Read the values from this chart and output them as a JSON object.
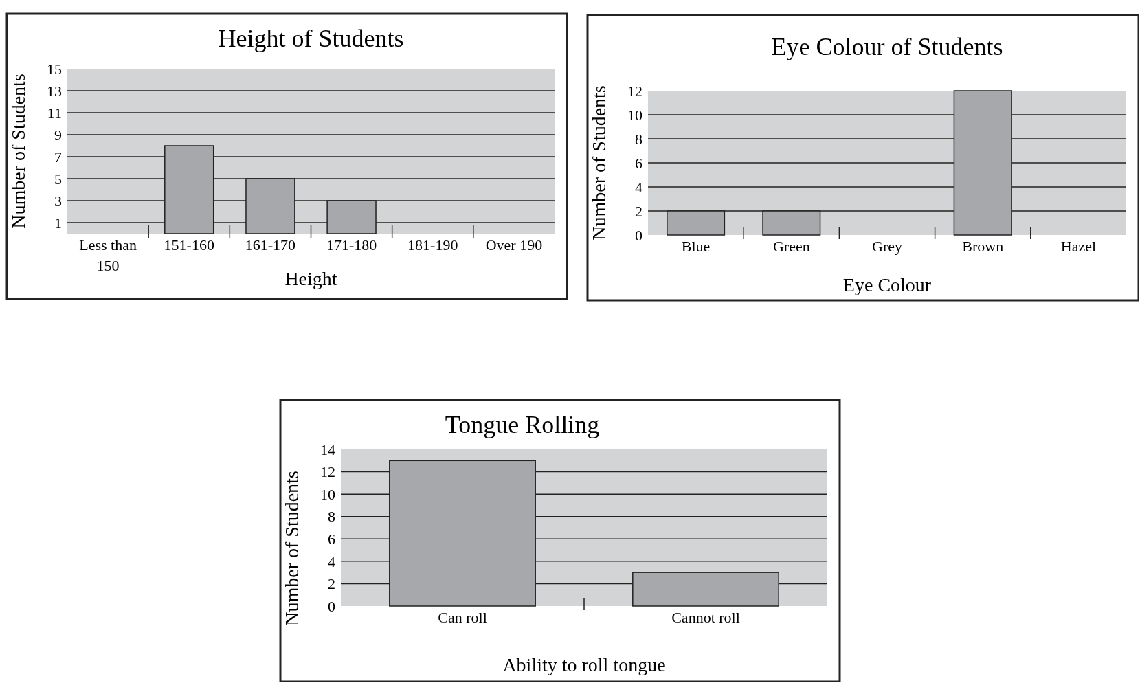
{
  "chart_data": [
    {
      "type": "bar",
      "title": "Height of Students",
      "xlabel": "Height",
      "ylabel": "Number of Students",
      "categories": [
        "Less than 150",
        "151-160",
        "161-170",
        "171-180",
        "181-190",
        "Over 190"
      ],
      "values": [
        0,
        8,
        5,
        3,
        0,
        0
      ],
      "color": "#a7a8ab",
      "ylim": [
        0,
        15
      ],
      "yticks": [
        1,
        3,
        5,
        7,
        9,
        11,
        13,
        15
      ],
      "grid": "y"
    },
    {
      "type": "bar",
      "title": "Eye Colour of Students",
      "xlabel": "Eye Colour",
      "ylabel": "Number of Students",
      "categories": [
        "Blue",
        "Green",
        "Grey",
        "Brown",
        "Hazel"
      ],
      "values": [
        2,
        2,
        0,
        12,
        0
      ],
      "color": "#a7a8ab",
      "ylim": [
        0,
        12
      ],
      "yticks": [
        0,
        2,
        4,
        6,
        8,
        10,
        12
      ],
      "grid": "y"
    },
    {
      "type": "bar",
      "title": "Tongue Rolling",
      "xlabel": "Ability to roll tongue",
      "ylabel": "Number of Students",
      "categories": [
        "Can roll",
        "Cannot roll"
      ],
      "values": [
        13,
        3
      ],
      "color": "#a7a8ab",
      "ylim": [
        0,
        14
      ],
      "yticks": [
        0,
        2,
        4,
        6,
        8,
        10,
        12,
        14
      ],
      "grid": "y"
    }
  ]
}
